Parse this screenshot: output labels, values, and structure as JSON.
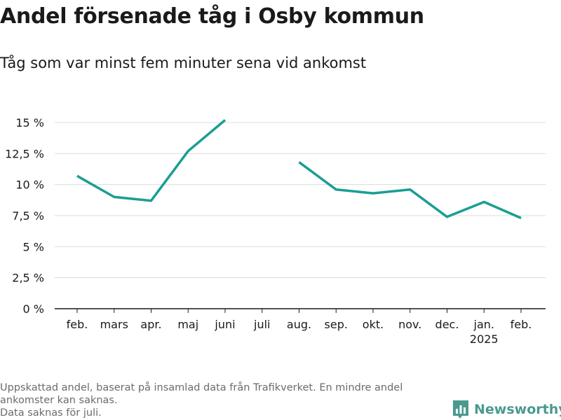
{
  "header": {
    "title": "Andel försenade tåg i Osby kommun",
    "subtitle": "Tåg som var minst fem minuter sena vid ankomst"
  },
  "chart_data": {
    "type": "line",
    "categories": [
      "feb.",
      "mars",
      "apr.",
      "maj",
      "juni",
      "juli",
      "aug.",
      "sep.",
      "okt.",
      "nov.",
      "dec.",
      "jan.",
      "feb."
    ],
    "category_sublabels": [
      "",
      "",
      "",
      "",
      "",
      "",
      "",
      "",
      "",
      "",
      "",
      "2025",
      ""
    ],
    "series": [
      {
        "values": [
          10.7,
          9.0,
          8.7,
          12.7,
          15.2,
          null,
          11.8,
          9.6,
          9.3,
          9.6,
          7.4,
          8.6,
          7.3
        ]
      }
    ],
    "yticks": [
      0,
      2.5,
      5,
      7.5,
      10,
      12.5,
      15
    ],
    "ytick_labels": [
      "0 %",
      "2,5 %",
      "5 %",
      "7,5 %",
      "10 %",
      "12,5 %",
      "15 %"
    ],
    "ylim": [
      0,
      15
    ],
    "xlabel": "",
    "ylabel": "",
    "grid": "horizontal",
    "line_color": "#1a9e93"
  },
  "footnote": {
    "line1": "Uppskattad andel, baserat på insamlad data från Trafikverket. En mindre andel",
    "line2": "ankomster kan saknas.",
    "line3": "Data saknas för juli."
  },
  "brand": {
    "name": "Newsworthy",
    "icon": "newsworthy-logo-icon",
    "color": "#4a9a8e"
  }
}
